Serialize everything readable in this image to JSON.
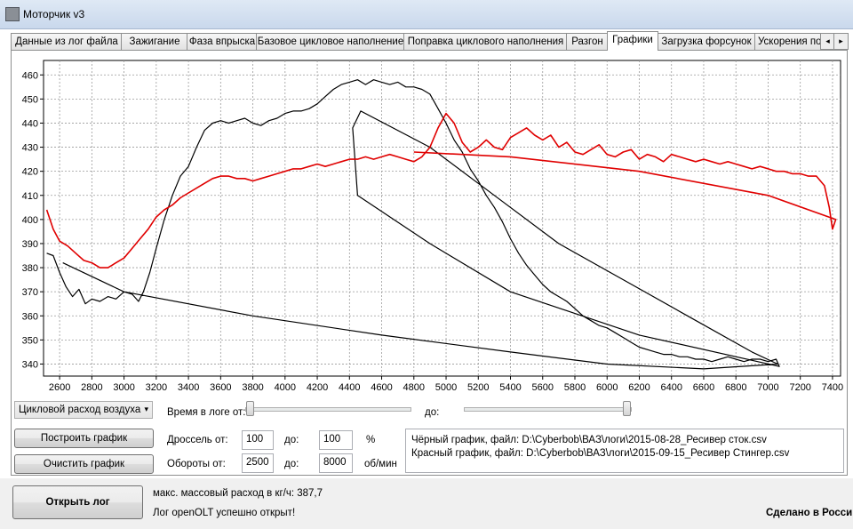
{
  "window": {
    "title": "Моторчик v3"
  },
  "tabs": [
    {
      "label": "Данные из лог файла"
    },
    {
      "label": "Зажигание"
    },
    {
      "label": "Фаза впрыска"
    },
    {
      "label": "Базовое цикловое наполнение"
    },
    {
      "label": "Поправка циклового наполнения"
    },
    {
      "label": "Разгон"
    },
    {
      "label": "Графики",
      "active": true
    },
    {
      "label": "Загрузка форсунок"
    },
    {
      "label": "Ускорения по"
    }
  ],
  "tab_scroll": {
    "left": "◂",
    "right": "▸"
  },
  "chart_data": {
    "type": "line",
    "xlim": [
      2500,
      7450
    ],
    "ylim": [
      335,
      466
    ],
    "x_ticks": [
      2600,
      2800,
      3000,
      3200,
      3400,
      3600,
      3800,
      4000,
      4200,
      4400,
      4600,
      4800,
      5000,
      5200,
      5400,
      5600,
      5800,
      6000,
      6200,
      6400,
      6600,
      6800,
      7000,
      7200,
      7400
    ],
    "y_ticks": [
      340,
      350,
      360,
      370,
      380,
      390,
      400,
      410,
      420,
      430,
      440,
      450,
      460
    ],
    "grid": true,
    "series": [
      {
        "color": "#000000",
        "x": [
          2520,
          2560,
          2600,
          2640,
          2680,
          2720,
          2760,
          2800,
          2850,
          2900,
          2950,
          3000,
          3050,
          3090,
          3120,
          3160,
          3200,
          3250,
          3300,
          3350,
          3400,
          3450,
          3500,
          3550,
          3600,
          3650,
          3700,
          3750,
          3800,
          3850,
          3900,
          3950,
          4000,
          4050,
          4100,
          4150,
          4200,
          4250,
          4300,
          4350,
          4400,
          4450,
          4500,
          4550,
          4600,
          4650,
          4700,
          4750,
          4800,
          4850,
          4900,
          4950,
          5000,
          5050,
          5100,
          5150,
          5200,
          5250,
          5300,
          5350,
          5400,
          5450,
          5500,
          5550,
          5600,
          5650,
          5700,
          5750,
          5800,
          5850,
          5900,
          5950,
          6000,
          6050,
          6100,
          6150,
          6200,
          6250,
          6300,
          6350,
          6400,
          6450,
          6500,
          6550,
          6600,
          6650,
          6700,
          6750,
          6800,
          6850,
          6900,
          6950,
          7000,
          7050,
          7070,
          6200,
          5400,
          4900,
          4450,
          4420,
          4470,
          4900,
          5300,
          5700,
          6100,
          6500,
          6900,
          7060,
          6600,
          6000,
          5400,
          4600,
          3800,
          3000,
          2620
        ],
        "y": [
          386,
          385,
          378,
          372,
          368,
          371,
          365,
          367,
          366,
          368,
          367,
          370,
          369,
          366,
          370,
          378,
          388,
          400,
          410,
          418,
          422,
          430,
          437,
          440,
          441,
          440,
          441,
          442,
          440,
          439,
          441,
          442,
          444,
          445,
          445,
          446,
          448,
          451,
          454,
          456,
          457,
          458,
          456,
          458,
          457,
          456,
          457,
          455,
          455,
          454,
          452,
          446,
          440,
          433,
          428,
          421,
          416,
          410,
          405,
          399,
          392,
          386,
          381,
          377,
          373,
          370,
          368,
          366,
          363,
          360,
          358,
          356,
          355,
          353,
          351,
          349,
          347,
          346,
          345,
          344,
          344,
          343,
          343,
          342,
          342,
          341,
          342,
          343,
          342,
          341,
          342,
          342,
          341,
          342,
          339,
          352,
          370,
          390,
          410,
          438,
          445,
          430,
          410,
          390,
          375,
          360,
          345,
          340,
          338,
          340,
          345,
          352,
          360,
          370,
          382
        ]
      },
      {
        "color": "#e00000",
        "x": [
          2520,
          2560,
          2600,
          2650,
          2700,
          2750,
          2800,
          2850,
          2900,
          2950,
          3000,
          3050,
          3100,
          3150,
          3200,
          3250,
          3300,
          3350,
          3400,
          3450,
          3500,
          3550,
          3600,
          3650,
          3700,
          3750,
          3800,
          3850,
          3900,
          3950,
          4000,
          4050,
          4100,
          4150,
          4200,
          4250,
          4300,
          4350,
          4400,
          4450,
          4500,
          4550,
          4600,
          4650,
          4700,
          4750,
          4800,
          4850,
          4900,
          4950,
          5000,
          5050,
          5100,
          5150,
          5200,
          5250,
          5300,
          5350,
          5400,
          5450,
          5500,
          5550,
          5600,
          5650,
          5700,
          5750,
          5800,
          5850,
          5900,
          5950,
          6000,
          6050,
          6100,
          6150,
          6200,
          6250,
          6300,
          6350,
          6400,
          6450,
          6500,
          6550,
          6600,
          6650,
          6700,
          6750,
          6800,
          6850,
          6900,
          6950,
          7000,
          7050,
          7100,
          7150,
          7200,
          7250,
          7300,
          7350,
          7380,
          7400,
          7420,
          7000,
          6200,
          5400,
          4800
        ],
        "y": [
          404,
          396,
          391,
          389,
          386,
          383,
          382,
          380,
          380,
          382,
          384,
          388,
          392,
          396,
          401,
          404,
          406,
          409,
          411,
          413,
          415,
          417,
          418,
          418,
          417,
          417,
          416,
          417,
          418,
          419,
          420,
          421,
          421,
          422,
          423,
          422,
          423,
          424,
          425,
          425,
          426,
          425,
          426,
          427,
          426,
          425,
          424,
          426,
          430,
          438,
          444,
          440,
          432,
          428,
          430,
          433,
          430,
          429,
          434,
          436,
          438,
          435,
          433,
          435,
          430,
          432,
          428,
          427,
          429,
          431,
          427,
          426,
          428,
          429,
          425,
          427,
          426,
          424,
          427,
          426,
          425,
          424,
          425,
          424,
          423,
          424,
          423,
          422,
          421,
          422,
          421,
          420,
          420,
          419,
          419,
          418,
          418,
          414,
          405,
          396,
          400,
          410,
          420,
          426,
          428
        ]
      }
    ]
  },
  "controls": {
    "param_combo": "Цикловой расход воздуха",
    "combo_arrow": "▾",
    "build_button": "Построить график",
    "clear_button": "Очистить график",
    "time_label": "Время в логе от:",
    "time_to_label": "до:",
    "time_from_value": 0,
    "time_to_value": 1,
    "throttle_label": "Дроссель от:",
    "throttle_from": "100",
    "throttle_to_label": "до:",
    "throttle_to": "100",
    "throttle_unit": "%",
    "rpm_label": "Обороты от:",
    "rpm_from": "2500",
    "rpm_to_label": "до:",
    "rpm_to": "8000",
    "rpm_unit": "об/мин"
  },
  "info": {
    "black_graph": "Чёрный график, файл: D:\\Cyberbob\\ВАЗ\\логи\\2015-08-28_Ресивер сток.csv",
    "red_graph": "Красный график, файл: D:\\Cyberbob\\ВАЗ\\логи\\2015-09-15_Ресивер Стингер.csv"
  },
  "bottom": {
    "open_log_button": "Открыть лог",
    "max_flow": "макс. массовый расход в кг/ч: 387,7",
    "status": "Лог openOLT успешно открыт!",
    "made_in": "Сделано в России"
  }
}
